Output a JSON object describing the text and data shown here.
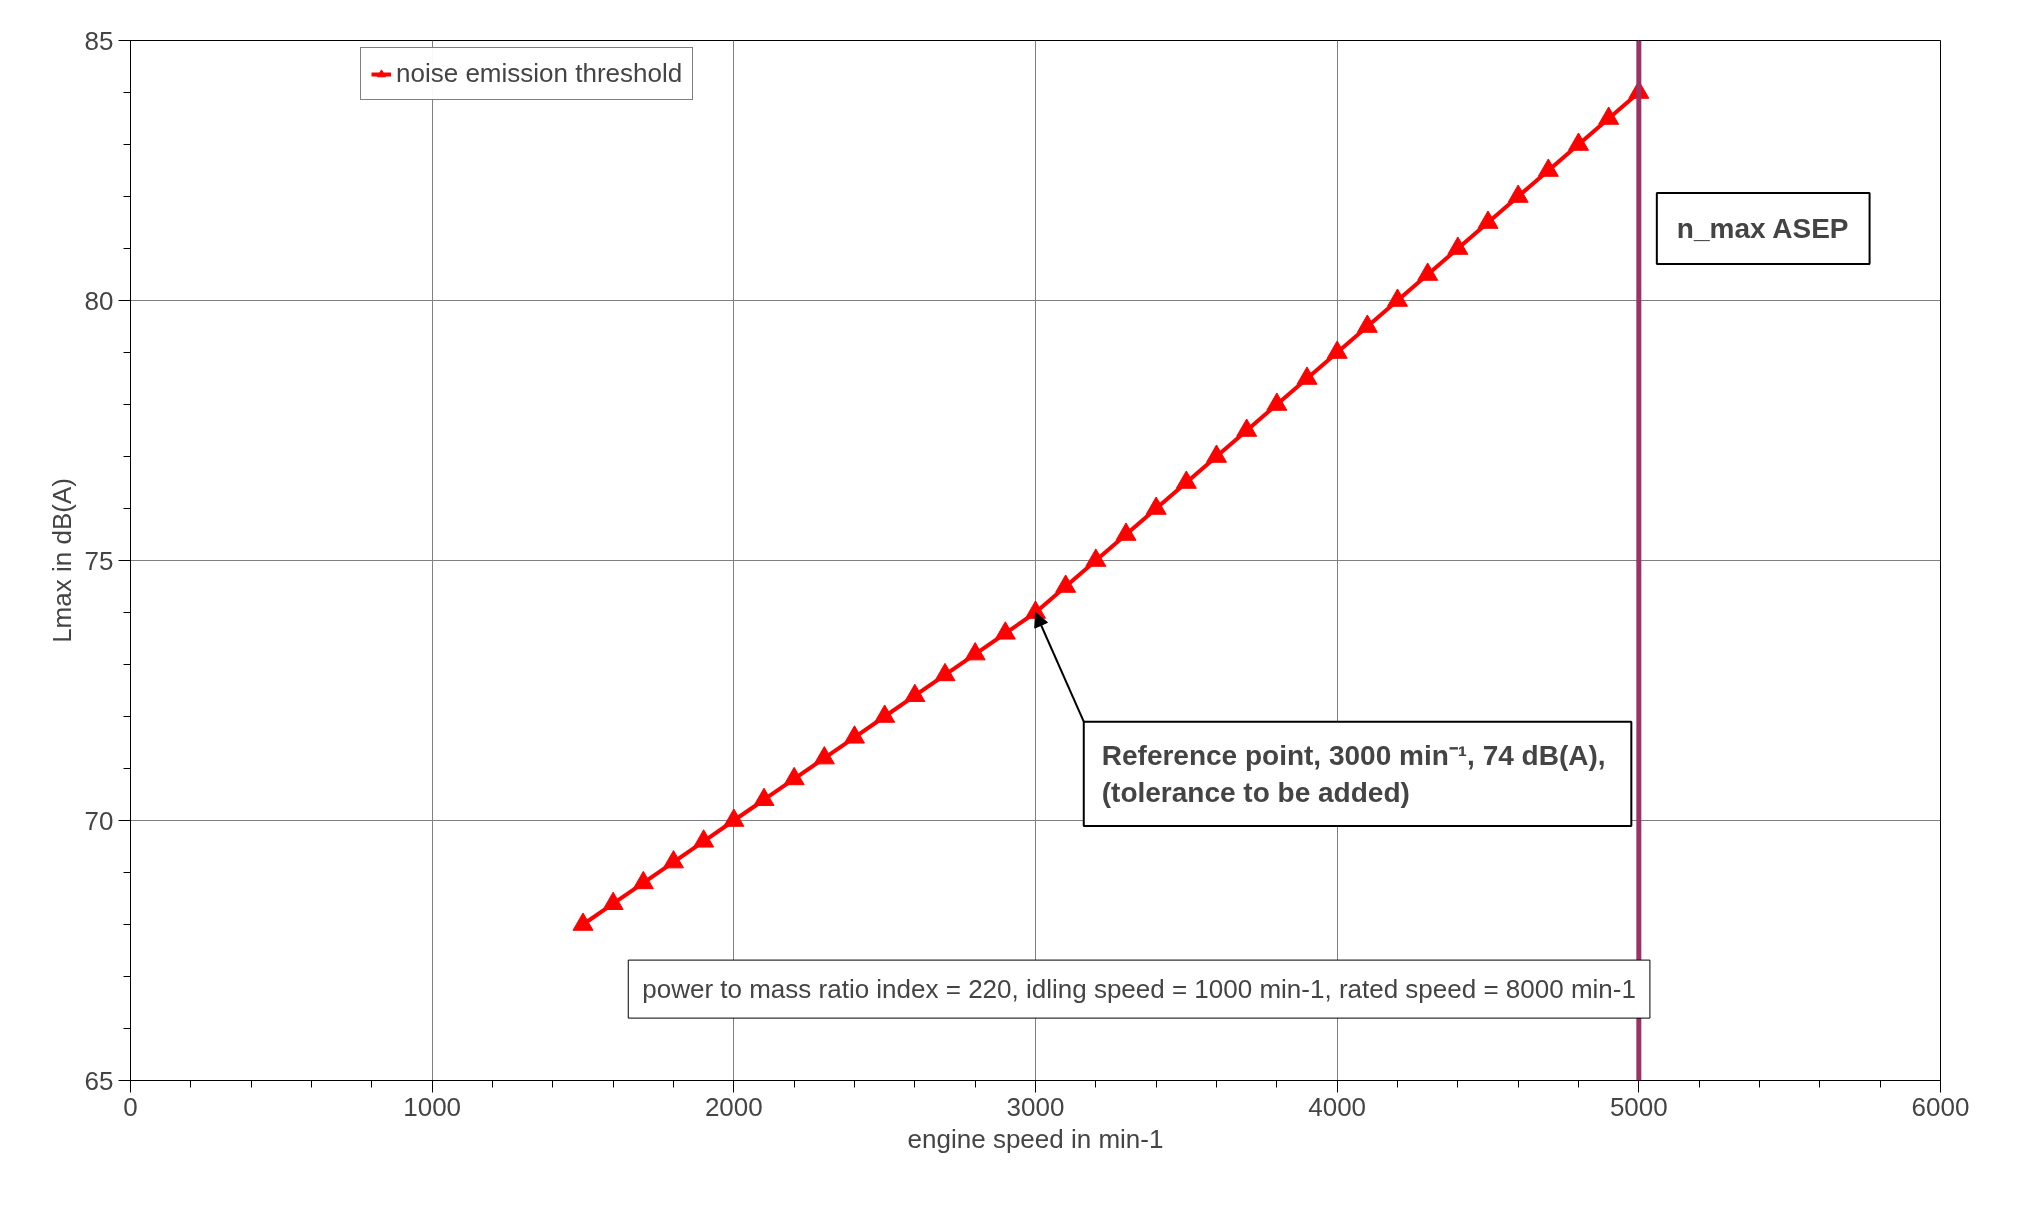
{
  "chart_data": {
    "type": "line",
    "xlabel": "engine speed in min-1",
    "ylabel": "Lmax in dB(A)",
    "x": [
      1500,
      1600,
      1700,
      1800,
      1900,
      2000,
      2100,
      2200,
      2300,
      2400,
      2500,
      2600,
      2700,
      2800,
      2900,
      3000,
      3100,
      3200,
      3300,
      3400,
      3500,
      3600,
      3700,
      3800,
      3900,
      4000,
      4100,
      4200,
      4300,
      4400,
      4500,
      4600,
      4700,
      4800,
      4900,
      5000
    ],
    "series": [
      {
        "name": "noise emission threshold",
        "color": "#ff0000",
        "values": [
          68,
          68.4,
          68.8,
          69.2,
          69.6,
          70,
          70.4,
          70.8,
          71.2,
          71.6,
          72,
          72.4,
          72.8,
          73.2,
          73.6,
          74,
          74.5,
          75,
          75.5,
          76,
          76.5,
          77,
          77.5,
          78,
          78.5,
          79,
          79.5,
          80,
          80.5,
          81,
          81.5,
          82,
          82.5,
          83,
          83.5,
          84
        ]
      }
    ],
    "xlim": [
      0,
      6000
    ],
    "ylim": [
      65,
      85
    ],
    "xticks": [
      0,
      {
        "value": 200,
        "label": null
      },
      {
        "value": 400,
        "label": null
      },
      {
        "value": 600,
        "label": null
      },
      {
        "value": 800,
        "label": null
      },
      1000,
      {
        "value": 1200,
        "label": null
      },
      {
        "value": 1400,
        "label": null
      },
      {
        "value": 1600,
        "label": null
      },
      {
        "value": 1800,
        "label": null
      },
      2000,
      {
        "value": 2200,
        "label": null
      },
      {
        "value": 2400,
        "label": null
      },
      {
        "value": 2600,
        "label": null
      },
      {
        "value": 2800,
        "label": null
      },
      3000,
      {
        "value": 3200,
        "label": null
      },
      {
        "value": 3400,
        "label": null
      },
      {
        "value": 3600,
        "label": null
      },
      {
        "value": 3800,
        "label": null
      },
      4000,
      {
        "value": 4200,
        "label": null
      },
      {
        "value": 4400,
        "label": null
      },
      {
        "value": 4600,
        "label": null
      },
      {
        "value": 4800,
        "label": null
      },
      5000,
      {
        "value": 5200,
        "label": null
      },
      {
        "value": 5400,
        "label": null
      },
      {
        "value": 5600,
        "label": null
      },
      {
        "value": 5800,
        "label": null
      },
      6000
    ],
    "yticks": [
      65,
      {
        "value": 66,
        "label": null
      },
      {
        "value": 67,
        "label": null
      },
      {
        "value": 68,
        "label": null
      },
      {
        "value": 69,
        "label": null
      },
      70,
      {
        "value": 71,
        "label": null
      },
      {
        "value": 72,
        "label": null
      },
      {
        "value": 73,
        "label": null
      },
      {
        "value": 74,
        "label": null
      },
      75,
      {
        "value": 76,
        "label": null
      },
      {
        "value": 77,
        "label": null
      },
      {
        "value": 78,
        "label": null
      },
      {
        "value": 79,
        "label": null
      },
      80,
      {
        "value": 81,
        "label": null
      },
      {
        "value": 82,
        "label": null
      },
      {
        "value": 83,
        "label": null
      },
      {
        "value": 84,
        "label": null
      },
      85
    ],
    "ref_lines": [
      {
        "axis": "x",
        "value": 5000,
        "label": "n_max ASEP",
        "color": "#993366"
      }
    ],
    "annotations": [
      {
        "text": "Reference point, 3000  min⁻¹, 74 dB(A),\n(tolerance to be added)",
        "x": 3000,
        "y": 74
      },
      "power to mass ratio index = 220, idling speed = 1000 min-1, rated speed = 8000 min-1"
    ],
    "grid": true,
    "legend": "top left",
    "marker": "triangle",
    "line_style": "solid"
  }
}
